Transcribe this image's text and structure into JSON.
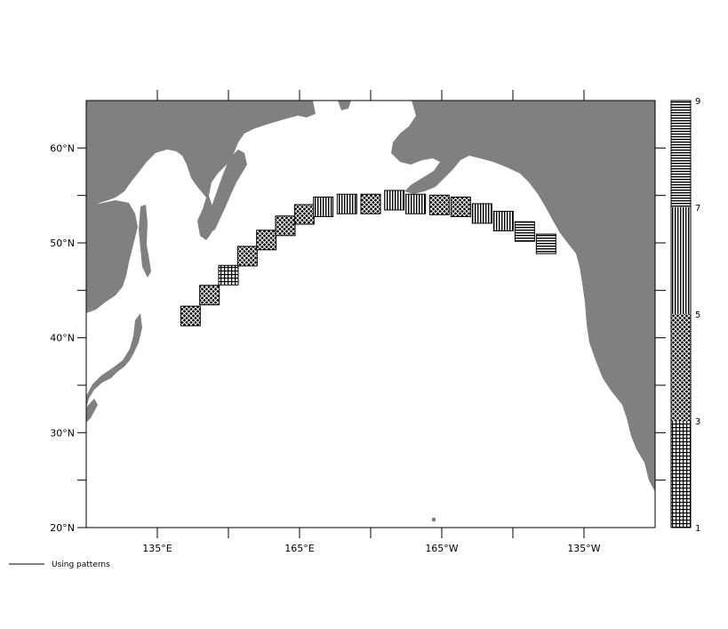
{
  "map": {
    "y_labels": [
      "60°N",
      "50°N",
      "40°N",
      "30°N",
      "20°N"
    ],
    "x_labels": [
      "135°E",
      "165°E",
      "165°W",
      "135°W"
    ],
    "land_color": "#808080",
    "ocean_color": "#ffffff"
  },
  "colorbar": {
    "labels": [
      "9",
      "7",
      "5",
      "3",
      "1"
    ],
    "patterns": [
      "grid-pattern",
      "crosshatch-pattern",
      "vertical-lines-pattern",
      "horizontal-lines-pattern"
    ]
  },
  "markers": [
    {
      "pattern": "crosshatch",
      "lon": 142.0,
      "lat": 42.3
    },
    {
      "pattern": "crosshatch",
      "lon": 146.0,
      "lat": 44.5
    },
    {
      "pattern": "grid",
      "lon": 150.0,
      "lat": 46.6
    },
    {
      "pattern": "crosshatch",
      "lon": 154.0,
      "lat": 48.6
    },
    {
      "pattern": "crosshatch",
      "lon": 158.0,
      "lat": 50.3
    },
    {
      "pattern": "crosshatch",
      "lon": 162.0,
      "lat": 51.8
    },
    {
      "pattern": "crosshatch",
      "lon": 166.0,
      "lat": 53.0
    },
    {
      "pattern": "vertical",
      "lon": 170.0,
      "lat": 53.8
    },
    {
      "pattern": "vertical",
      "lon": 175.0,
      "lat": 54.1
    },
    {
      "pattern": "crosshatch",
      "lon": 180.0,
      "lat": 54.1
    },
    {
      "pattern": "vertical",
      "lon": 185.0,
      "lat": 54.5
    },
    {
      "pattern": "vertical",
      "lon": 189.5,
      "lat": 54.1
    },
    {
      "pattern": "crosshatch",
      "lon": 194.5,
      "lat": 54.0
    },
    {
      "pattern": "crosshatch",
      "lon": 199.0,
      "lat": 53.8
    },
    {
      "pattern": "vertical",
      "lon": 203.5,
      "lat": 53.1
    },
    {
      "pattern": "vertical",
      "lon": 208.0,
      "lat": 52.3
    },
    {
      "pattern": "horizontal",
      "lon": 212.5,
      "lat": 51.2
    },
    {
      "pattern": "horizontal",
      "lon": 217.0,
      "lat": 49.9
    }
  ],
  "footer": {
    "legend_text": "Using patterns"
  }
}
